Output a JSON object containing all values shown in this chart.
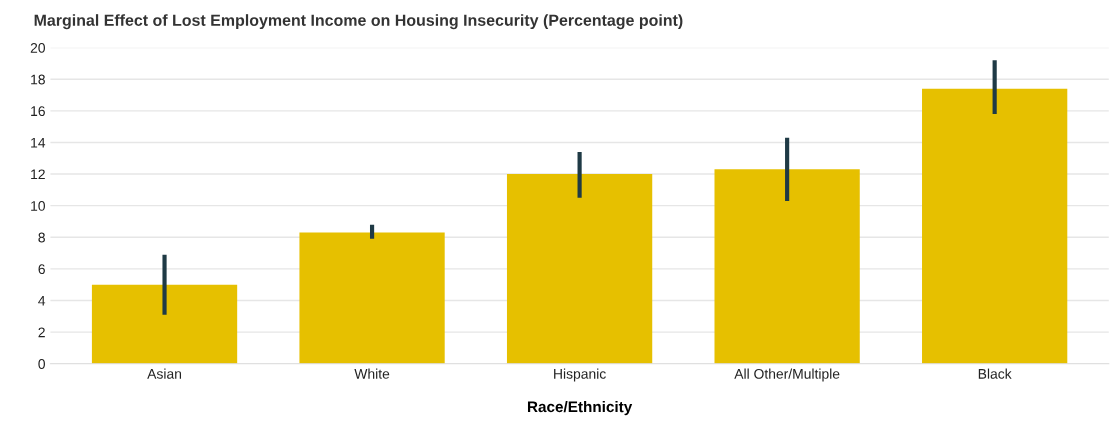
{
  "chart_data": {
    "type": "bar",
    "title": "Marginal Effect of Lost Employment Income on Housing Insecurity (Percentage point)",
    "xlabel": "Race/Ethnicity",
    "categories": [
      "Asian",
      "White",
      "Hispanic",
      "All Other/Multiple",
      "Black"
    ],
    "values": [
      5.0,
      8.3,
      12.0,
      12.3,
      17.4
    ],
    "errors": [
      [
        3.1,
        6.9
      ],
      [
        7.9,
        8.8
      ],
      [
        10.5,
        13.4
      ],
      [
        10.3,
        14.3
      ],
      [
        15.8,
        19.2
      ]
    ],
    "color": "#e6c000",
    "ylim": [
      0,
      20
    ],
    "yticks": [
      0,
      2,
      4,
      6,
      8,
      10,
      12,
      14,
      16,
      18,
      20
    ],
    "grid": "y",
    "legend": false
  }
}
